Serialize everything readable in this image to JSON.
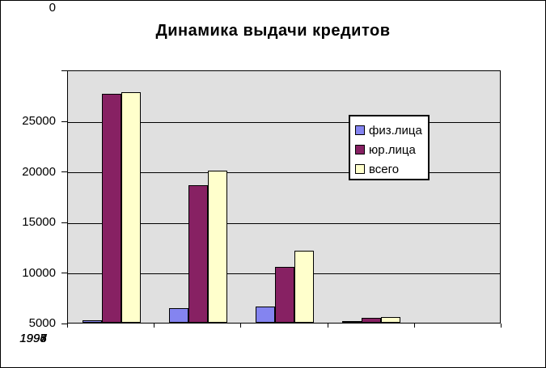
{
  "chart_data": {
    "type": "bar",
    "title": "Динамика выдачи кредитов",
    "categories": [
      "1994",
      "1995",
      "1996",
      "1997",
      "1998"
    ],
    "series": [
      {
        "name": "физ.лица",
        "color": "#8484F0",
        "values": [
          200,
          1400,
          1600,
          100,
          0
        ]
      },
      {
        "name": "юр.лица",
        "color": "#872163",
        "values": [
          22600,
          13600,
          5500,
          450,
          0
        ]
      },
      {
        "name": "всего",
        "color": "#FFFFCC",
        "values": [
          22800,
          15000,
          7100,
          550,
          0
        ]
      }
    ],
    "ylim": [
      0,
      25000
    ],
    "ytick_interval": 5000,
    "yticks": [
      "25000",
      "20000",
      "15000",
      "10000",
      "5000",
      "0"
    ],
    "xlabel": "",
    "ylabel": "",
    "grid": true,
    "legend_position": "overlay-right",
    "plot_bg_color": "#E0E0E0",
    "gridline_color": "#000000",
    "axis_color": "#000000"
  }
}
